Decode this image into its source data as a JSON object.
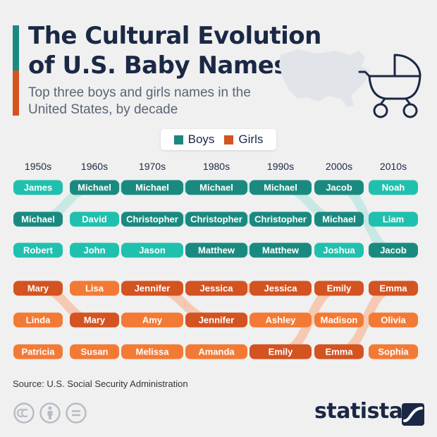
{
  "header": {
    "title": "The Cultural Evolution of U.S. Baby Names",
    "subtitle": "Top three boys and girls names in the United States, by decade"
  },
  "legend": {
    "boys_label": "Boys",
    "girls_label": "Girls"
  },
  "footer": {
    "source": "Source: U.S. Social Security Administration",
    "brand": "statista"
  },
  "colors": {
    "boys_dark": "#1a8a80",
    "boys_light": "#20c0ae",
    "boys_connector": "#c8e8e4",
    "girls_dark": "#d35321",
    "girls_light": "#f37a35",
    "girls_connector": "#f6c9b2",
    "title": "#1b2845"
  },
  "icons": [
    "us-map-icon",
    "baby-stroller-icon",
    "creative-commons-icon",
    "attribution-icon",
    "no-derivatives-icon",
    "statista-logo-icon"
  ],
  "chart_data": {
    "type": "table",
    "title": "The Cultural Evolution of U.S. Baby Names",
    "subtitle": "Top three boys and girls names in the United States, by decade",
    "decades": [
      "1950s",
      "1960s",
      "1970s",
      "1980s",
      "1990s",
      "2000s",
      "2010s"
    ],
    "series": [
      {
        "name": "Boys",
        "rankings": [
          [
            "James",
            "Michael",
            "Robert"
          ],
          [
            "Michael",
            "David",
            "John"
          ],
          [
            "Michael",
            "Christopher",
            "Jason"
          ],
          [
            "Michael",
            "Christopher",
            "Matthew"
          ],
          [
            "Michael",
            "Christopher",
            "Matthew"
          ],
          [
            "Jacob",
            "Michael",
            "Joshua"
          ],
          [
            "Noah",
            "Liam",
            "Jacob"
          ]
        ]
      },
      {
        "name": "Girls",
        "rankings": [
          [
            "Mary",
            "Linda",
            "Patricia"
          ],
          [
            "Lisa",
            "Mary",
            "Susan"
          ],
          [
            "Jennifer",
            "Amy",
            "Melissa"
          ],
          [
            "Jessica",
            "Jennifer",
            "Amanda"
          ],
          [
            "Jessica",
            "Ashley",
            "Emily"
          ],
          [
            "Emily",
            "Madison",
            "Emma"
          ],
          [
            "Emma",
            "Olivia",
            "Sophia"
          ]
        ]
      }
    ]
  }
}
